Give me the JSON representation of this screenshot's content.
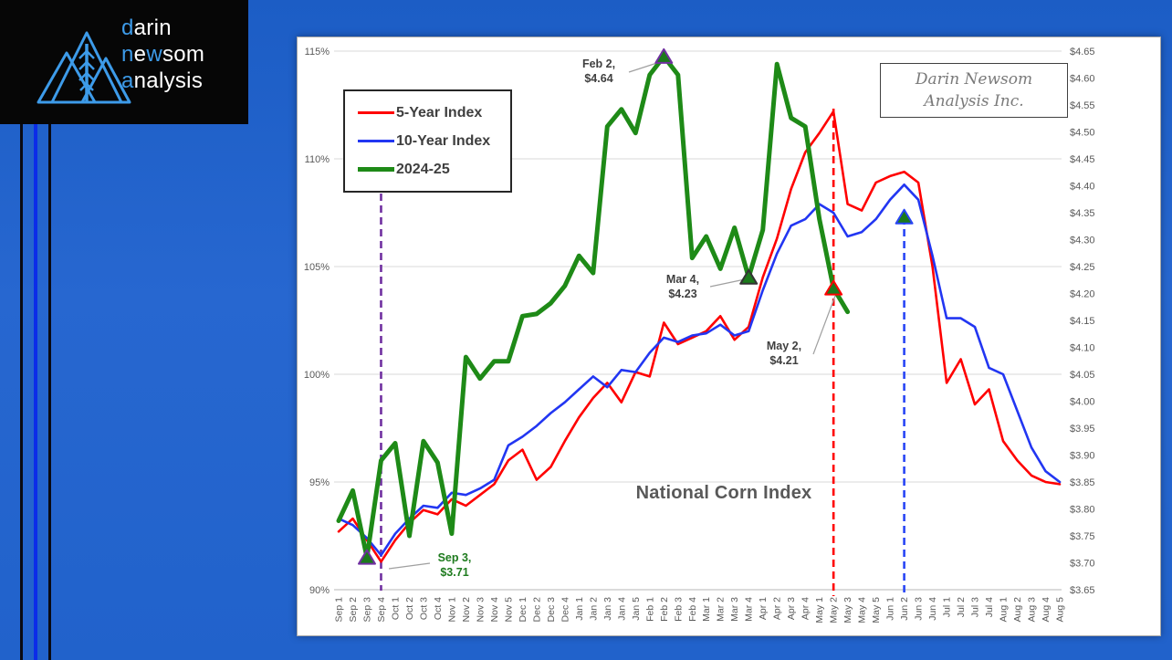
{
  "logo": {
    "l1b": "d",
    "l1w": "arin",
    "l2b1": "n",
    "l2w1": "e",
    "l2b2": "w",
    "l2w2": "som",
    "l3b": "a",
    "l3w": "nalysis",
    "accent_color": "#3D9BE9"
  },
  "company_box": {
    "line1": "Darin Newsom",
    "line2": "Analysis Inc."
  },
  "legend": {
    "items": [
      {
        "label": "5-Year Index",
        "color": "#FF0000",
        "weight": 3
      },
      {
        "label": "10-Year Index",
        "color": "#2236F2",
        "weight": 3
      },
      {
        "label": "2024-25",
        "color": "#1E8A17",
        "weight": 5
      }
    ]
  },
  "annotations": {
    "feb2": {
      "line1": "Feb 2,",
      "line2": "$4.64"
    },
    "mar4": {
      "line1": "Mar 4,",
      "line2": "$4.23"
    },
    "may2": {
      "line1": "May 2,",
      "line2": "$4.21"
    },
    "sep3": {
      "line1": "Sep 3,",
      "line2": "$3.71"
    }
  },
  "chart_data": {
    "type": "line",
    "title": "National Corn Index",
    "x_labels": [
      "Sep 1",
      "Sep 2",
      "Sep 3",
      "Sep 4",
      "Oct 1",
      "Oct 2",
      "Oct 3",
      "Oct 4",
      "Nov 1",
      "Nov 2",
      "Nov 3",
      "Nov 4",
      "Nov 5",
      "Dec 1",
      "Dec 2",
      "Dec 3",
      "Dec 4",
      "Jan 1",
      "Jan 2",
      "Jan 3",
      "Jan 4",
      "Jan 5",
      "Feb 1",
      "Feb 2",
      "Feb 3",
      "Feb 4",
      "Mar 1",
      "Mar 2",
      "Mar 3",
      "Mar 4",
      "Apr 1",
      "Apr 2",
      "Apr 3",
      "Apr 4",
      "May 1",
      "May 2",
      "May 3",
      "May 4",
      "May 5",
      "Jun 1",
      "Jun 2",
      "Jun 3",
      "Jun 4",
      "Jul 1",
      "Jul 2",
      "Jul 3",
      "Jul 4",
      "Aug 1",
      "Aug 2",
      "Aug 3",
      "Aug 4",
      "Aug 5"
    ],
    "y_left": {
      "min": 90,
      "max": 115,
      "step": 5,
      "labels": [
        "115%",
        "110%",
        "105%",
        "100%",
        "95%",
        "90%"
      ]
    },
    "y_right": {
      "min": 3.65,
      "max": 4.65,
      "step": 0.05,
      "labels": [
        "$4.65",
        "$4.60",
        "$4.55",
        "$4.50",
        "$4.45",
        "$4.40",
        "$4.35",
        "$4.30",
        "$4.25",
        "$4.20",
        "$4.15",
        "$4.10",
        "$4.05",
        "$4.00",
        "$3.95",
        "$3.90",
        "$3.85",
        "$3.80",
        "$3.75",
        "$3.70",
        "$3.65"
      ]
    },
    "axis_mapping": "90% = $3.65, 1% = $0.04",
    "grid": true,
    "legend_position": "top-left",
    "series": [
      {
        "name": "5-Year Index",
        "color": "#FF0000",
        "width": 2.6,
        "values": [
          92.7,
          93.3,
          92.3,
          91.3,
          92.3,
          93.1,
          93.7,
          93.5,
          94.2,
          93.9,
          94.4,
          94.9,
          96.0,
          96.5,
          95.1,
          95.7,
          96.9,
          98.0,
          98.9,
          99.6,
          98.7,
          100.1,
          99.9,
          102.4,
          101.4,
          101.7,
          102.0,
          102.7,
          101.6,
          102.2,
          104.5,
          106.3,
          108.6,
          110.3,
          111.2,
          112.2,
          107.9,
          107.6,
          108.9,
          109.2,
          109.4,
          108.9,
          105.0,
          99.6,
          100.7,
          98.6,
          99.3,
          96.9,
          96.0,
          95.3,
          95.0,
          94.9
        ]
      },
      {
        "name": "10-Year Index",
        "color": "#2236F2",
        "width": 2.6,
        "values": [
          93.3,
          93.0,
          92.4,
          91.6,
          92.6,
          93.3,
          93.9,
          93.8,
          94.5,
          94.4,
          94.7,
          95.1,
          96.7,
          97.1,
          97.6,
          98.2,
          98.7,
          99.3,
          99.9,
          99.4,
          100.2,
          100.1,
          101.0,
          101.7,
          101.5,
          101.8,
          101.9,
          102.3,
          101.8,
          102.0,
          103.9,
          105.6,
          106.9,
          107.2,
          107.9,
          107.5,
          106.4,
          106.6,
          107.2,
          108.1,
          108.8,
          108.1,
          105.5,
          102.6,
          102.6,
          102.2,
          100.3,
          100.0,
          98.3,
          96.6,
          95.5,
          95.0
        ]
      },
      {
        "name": "2024-25",
        "color": "#1E8A17",
        "width": 5,
        "values": [
          93.2,
          94.6,
          91.5,
          96.0,
          96.8,
          92.5,
          96.9,
          95.9,
          92.6,
          100.8,
          99.8,
          100.6,
          100.6,
          102.7,
          102.8,
          103.3,
          104.1,
          105.5,
          104.7,
          111.5,
          112.3,
          111.2,
          113.9,
          114.75,
          113.9,
          105.4,
          106.4,
          104.9,
          106.8,
          104.5,
          106.7,
          114.4,
          111.9,
          111.5,
          107.2,
          104.0,
          102.9,
          null,
          null,
          null,
          null,
          null,
          null,
          null,
          null,
          null,
          null,
          null,
          null,
          null,
          null,
          null
        ]
      }
    ],
    "vlines": [
      {
        "x_label": "Sep 4",
        "color": "#7030A0"
      },
      {
        "x_label": "May 2",
        "color": "#FF0000"
      },
      {
        "x_label": "Jun 2",
        "color": "#2845F5"
      }
    ],
    "markers": [
      {
        "x_label": "Sep 3",
        "pct": 91.5,
        "dollar": "$3.71",
        "outline": "#7030A0"
      },
      {
        "x_label": "Feb 2",
        "pct": 114.75,
        "dollar": "$4.64",
        "outline": "#7030A0"
      },
      {
        "x_label": "Mar 4",
        "pct": 104.5,
        "dollar": "$4.23",
        "outline": "#333333"
      },
      {
        "x_label": "May 2",
        "pct": 104.0,
        "dollar": "$4.21",
        "outline": "#FF0000"
      },
      {
        "x_label": "Jun 2",
        "pct": 107.3,
        "outline": "#2845F5"
      }
    ]
  }
}
